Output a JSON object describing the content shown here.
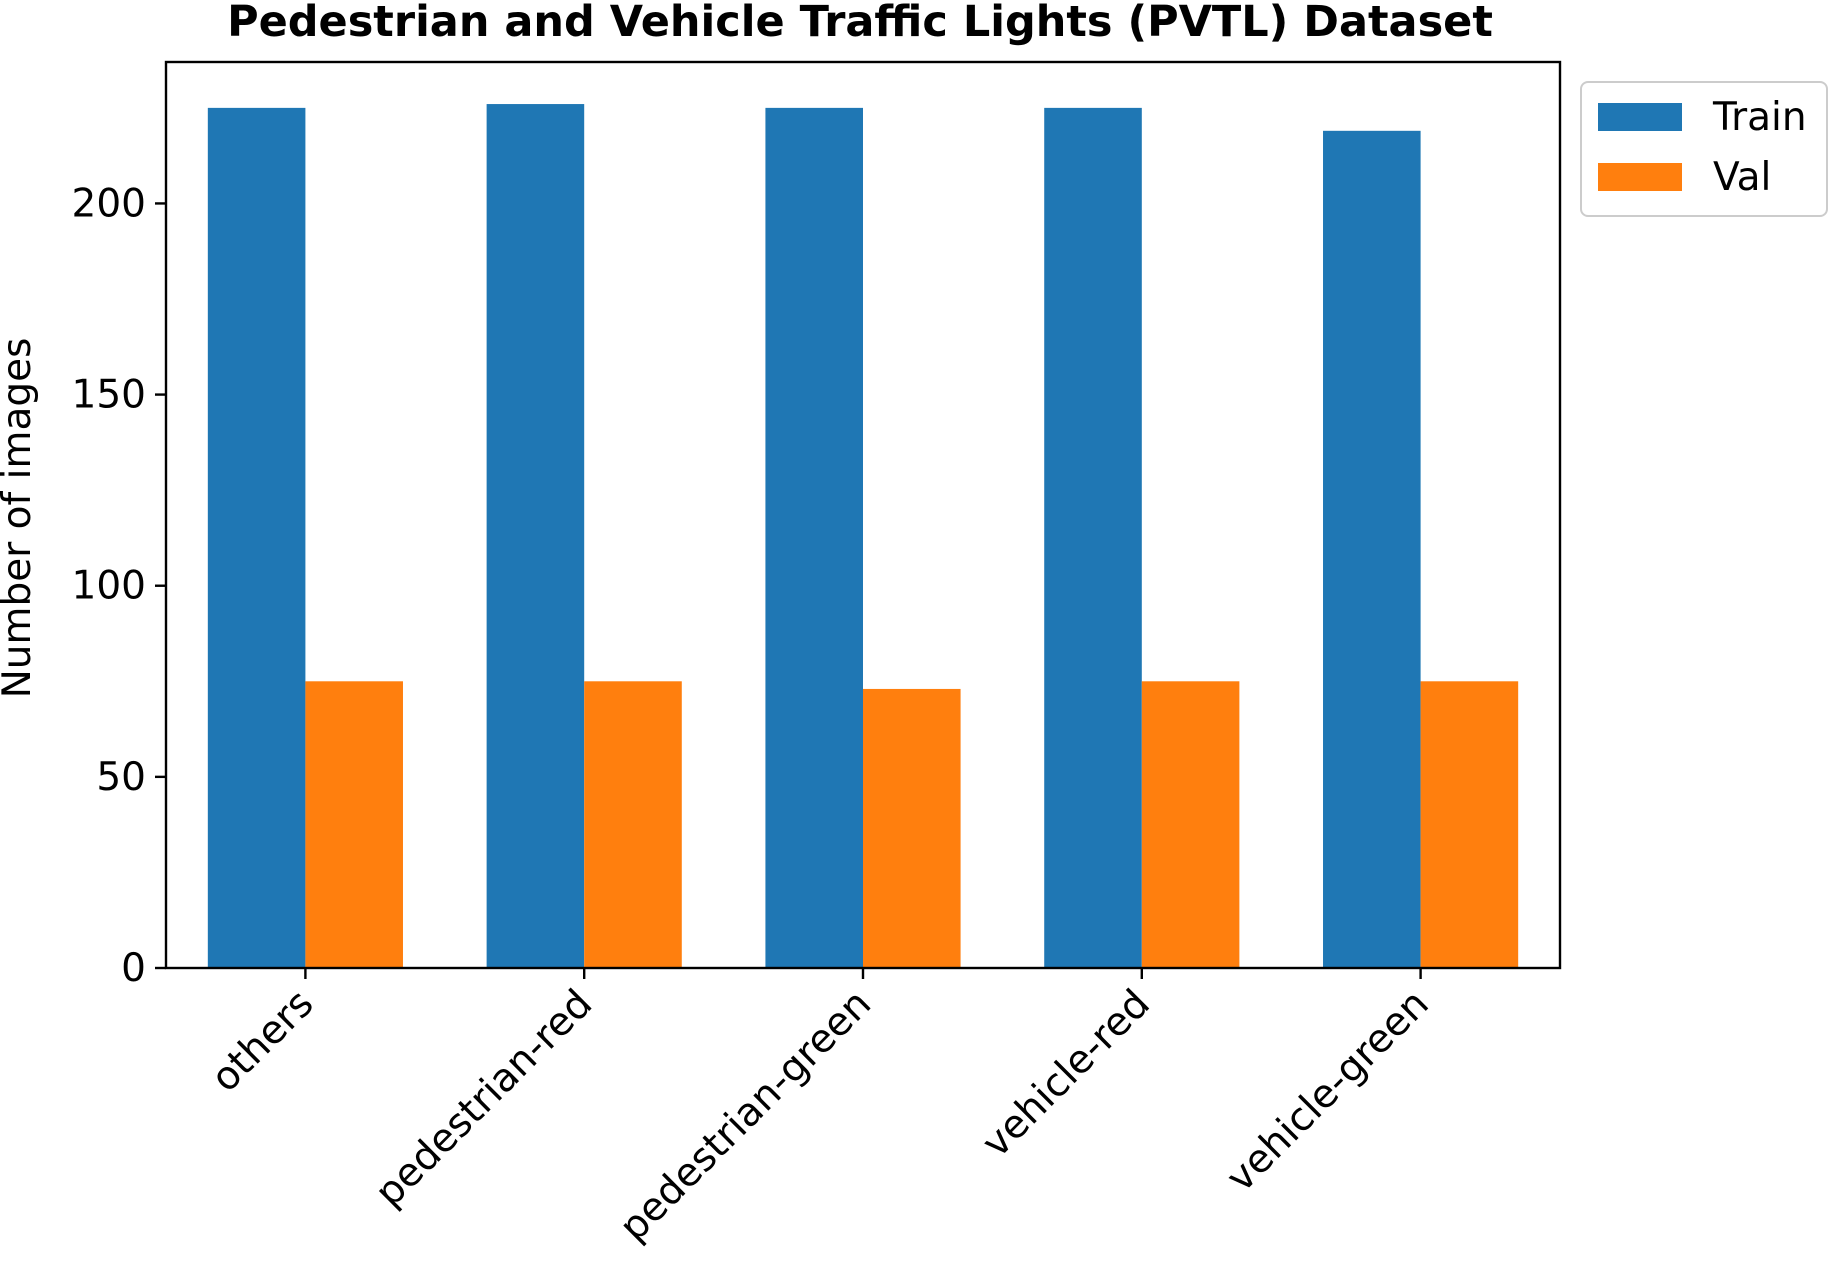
{
  "chart_data": {
    "type": "bar",
    "title": "Pedestrian and Vehicle Traffic Lights (PVTL) Dataset",
    "xlabel": "",
    "ylabel": "Number of images",
    "categories": [
      "others",
      "pedestrian-red",
      "pedestrian-green",
      "vehicle-red",
      "vehicle-green"
    ],
    "series": [
      {
        "name": "Train",
        "values": [
          225,
          226,
          225,
          225,
          219
        ],
        "color": "#1f77b4"
      },
      {
        "name": "Val",
        "values": [
          75,
          75,
          73,
          75,
          75
        ],
        "color": "#ff7f0e"
      }
    ],
    "ylim": [
      0,
      237
    ],
    "yticks": [
      0,
      50,
      100,
      150,
      200
    ],
    "grid": false,
    "legend_position": "outside top-right"
  }
}
